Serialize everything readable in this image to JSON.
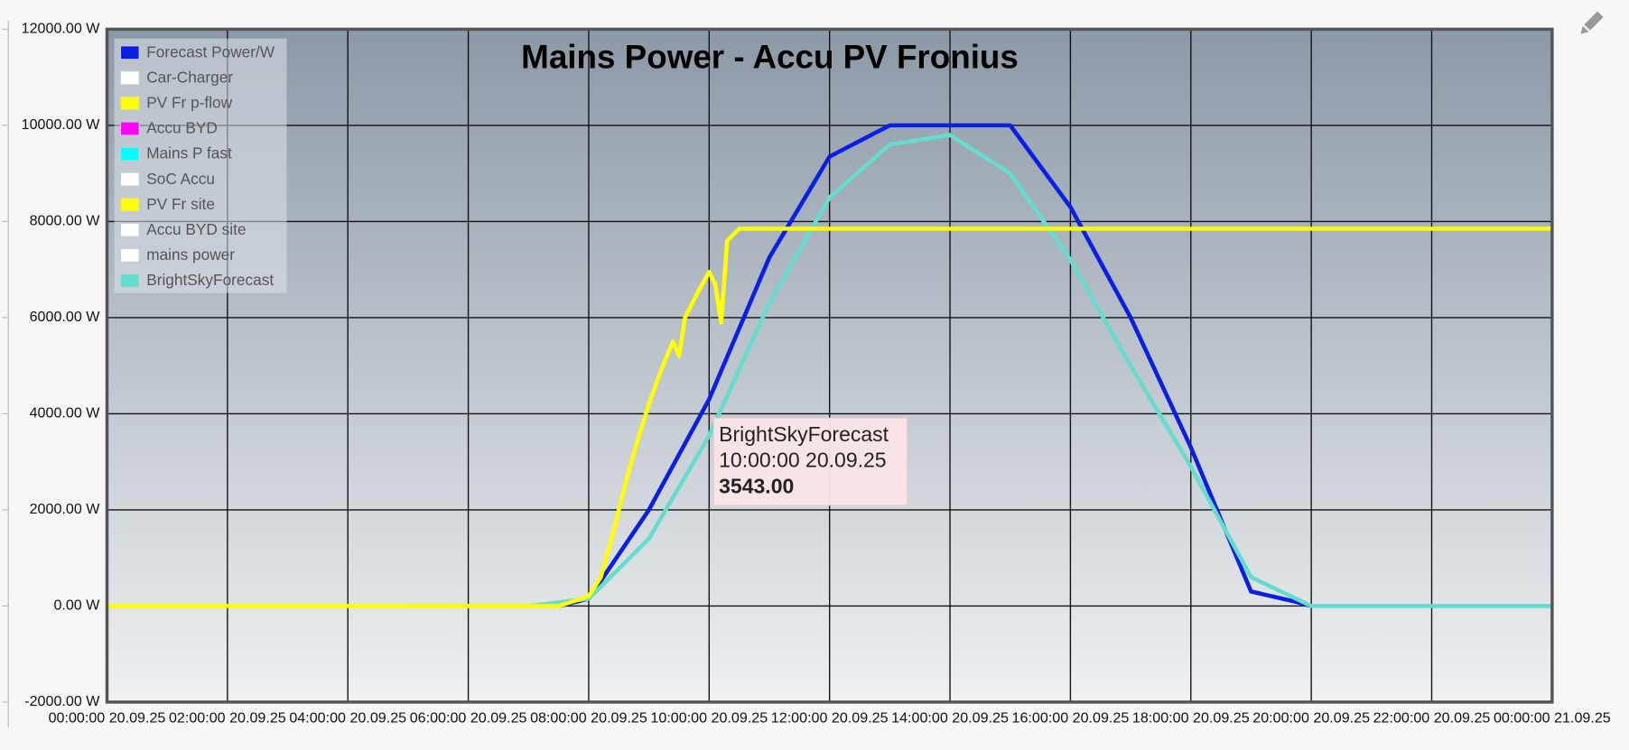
{
  "chart_data": {
    "type": "line",
    "title": "Mains Power - Accu PV Fronius",
    "xlim": [
      0,
      24
    ],
    "xticks": [
      {
        "value": 0,
        "label": "00:00:00 20.09.25"
      },
      {
        "value": 2,
        "label": "02:00:00 20.09.25"
      },
      {
        "value": 4,
        "label": "04:00:00 20.09.25"
      },
      {
        "value": 6,
        "label": "06:00:00 20.09.25"
      },
      {
        "value": 8,
        "label": "08:00:00 20.09.25"
      },
      {
        "value": 10,
        "label": "10:00:00 20.09.25"
      },
      {
        "value": 12,
        "label": "12:00:00 20.09.25"
      },
      {
        "value": 14,
        "label": "14:00:00 20.09.25"
      },
      {
        "value": 16,
        "label": "16:00:00 20.09.25"
      },
      {
        "value": 18,
        "label": "18:00:00 20.09.25"
      },
      {
        "value": 20,
        "label": "20:00:00 20.09.25"
      },
      {
        "value": 22,
        "label": "22:00:00 20.09.25"
      },
      {
        "value": 24,
        "label": "00:00:00 21.09.25"
      }
    ],
    "ylim": [
      -2000,
      12000
    ],
    "yticks": [
      {
        "value": -2000,
        "label": "-2000.00 W"
      },
      {
        "value": 0,
        "label": "0.00 W"
      },
      {
        "value": 2000,
        "label": "2000.00 W"
      },
      {
        "value": 4000,
        "label": "4000.00 W"
      },
      {
        "value": 6000,
        "label": "6000.00 W"
      },
      {
        "value": 8000,
        "label": "8000.00 W"
      },
      {
        "value": 10000,
        "label": "10000.00 W"
      },
      {
        "value": 12000,
        "label": "12000.00 W"
      }
    ],
    "grid": true,
    "legend": "top-left",
    "series": [
      {
        "name": "Forecast Power/W",
        "color": "#0a1ee6",
        "x": [
          7.5,
          8,
          9,
          10,
          11,
          12,
          13,
          14,
          15,
          16,
          17,
          18,
          19,
          19.7,
          20
        ],
        "values": [
          0,
          150,
          2000,
          4300,
          7250,
          9350,
          10000,
          10000,
          10000,
          8300,
          6000,
          3300,
          300,
          100,
          0
        ]
      },
      {
        "name": "Car-Charger",
        "color": "#ffffff",
        "x": [],
        "values": []
      },
      {
        "name": "PV Fr p-flow",
        "color": "#ffff00",
        "x": [],
        "values": []
      },
      {
        "name": "Accu BYD",
        "color": "#ff00ff",
        "x": [],
        "values": []
      },
      {
        "name": "Mains P fast",
        "color": "#00ffff",
        "x": [],
        "values": []
      },
      {
        "name": "SoC Accu",
        "color": "#ffffff",
        "x": [],
        "values": []
      },
      {
        "name": "PV Fr site",
        "color": "#ffff00",
        "x": [
          0,
          7.5,
          8,
          8.2,
          8.4,
          8.6,
          8.8,
          9.0,
          9.2,
          9.4,
          9.5,
          9.6,
          9.8,
          10.0,
          10.1,
          10.2,
          10.3,
          10.5,
          24
        ],
        "values": [
          0,
          0,
          200,
          600,
          1500,
          2500,
          3400,
          4200,
          4900,
          5500,
          5200,
          6000,
          6500,
          6950,
          6700,
          5900,
          7600,
          7850,
          7850
        ]
      },
      {
        "name": "Accu BYD site",
        "color": "#ffffff",
        "x": [],
        "values": []
      },
      {
        "name": "mains power",
        "color": "#ffffff",
        "x": [],
        "values": []
      },
      {
        "name": "BrightSkyForecast",
        "color": "#66dccc",
        "x": [
          5,
          7,
          8,
          9,
          10,
          11,
          12,
          13,
          14,
          15,
          16,
          17,
          18,
          19,
          20,
          24
        ],
        "values": [
          0,
          0,
          150,
          1400,
          3543,
          6300,
          8500,
          9600,
          9800,
          9000,
          7200,
          5000,
          2900,
          600,
          0,
          0
        ]
      }
    ],
    "tooltip": {
      "name": "BrightSkyForecast",
      "time": "10:00:00 20.09.25",
      "value": 3543,
      "value_label": "3543.00"
    }
  }
}
